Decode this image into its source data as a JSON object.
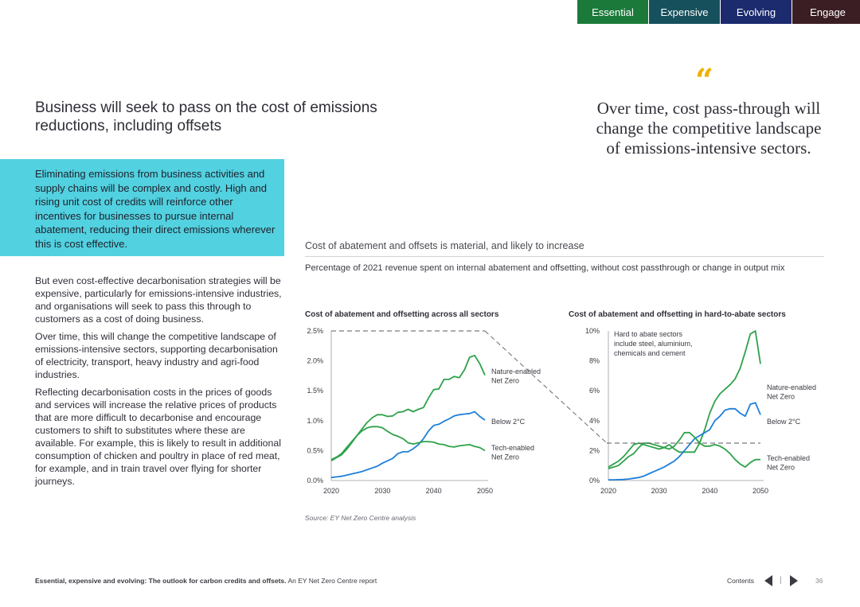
{
  "tabs": [
    {
      "label": "Essential",
      "color": "#1b7a3a"
    },
    {
      "label": "Expensive",
      "color": "#16505c"
    },
    {
      "label": "Evolving",
      "color": "#1c2a6e"
    },
    {
      "label": "Engage",
      "color": "#3b1e24"
    }
  ],
  "heading": "Business will seek to pass on the cost of emissions reductions, including offsets",
  "quote": {
    "mark": "“",
    "text": "Over time, cost pass-through will change the competitive landscape of emissions-intensive sectors."
  },
  "callout": "Eliminating emissions from business activities and supply chains will be complex and costly. High and rising unit cost of credits will reinforce other incentives for businesses to pursue internal abatement, reducing their direct emissions wherever this is cost effective.",
  "body": [
    "But even cost-effective decarbonisation strategies will be expensive, particularly for emissions-intensive industries, and organisations will seek to pass this through to customers as a cost of doing business.",
    "Over time, this will change the competitive landscape of emissions-intensive sectors, supporting decarbonisation of electricity, transport, heavy industry and agri-food industries.",
    "Reflecting decarbonisation costs in the prices of goods and services will increase the relative prices of products that are more difficult to decarbonise and encourage customers to shift to substitutes where these are available. For example, this is likely to result in additional consumption of chicken and poultry in place of red meat, for example, and in train travel over flying for shorter journeys."
  ],
  "chart_section": {
    "title": "Cost of abatement and offsets is material, and likely to increase",
    "subtitle": "Percentage of 2021 revenue spent on internal abatement and offsetting, without cost passthrough or change in output mix",
    "source": "Source: EY Net Zero Centre analysis"
  },
  "chart_data": [
    {
      "type": "line",
      "title": "Cost of abatement and offsetting across all sectors",
      "xlabel": "",
      "ylabel": "",
      "xlim": [
        2020,
        2050
      ],
      "ylim": [
        0,
        2.5
      ],
      "xticks": [
        "2020",
        "2030",
        "2040",
        "2050"
      ],
      "yticks": [
        "0.0%",
        "0.5%",
        "1.0%",
        "1.5%",
        "2.0%",
        "2.5%"
      ],
      "grid": false,
      "x": [
        2020,
        2021,
        2022,
        2023,
        2024,
        2025,
        2026,
        2027,
        2028,
        2029,
        2030,
        2031,
        2032,
        2033,
        2034,
        2035,
        2036,
        2037,
        2038,
        2039,
        2040,
        2041,
        2042,
        2043,
        2044,
        2045,
        2046,
        2047,
        2048,
        2049,
        2050
      ],
      "series": [
        {
          "name": "Nature-enabled Net Zero",
          "color": "#2ea24a",
          "values": [
            0.33,
            0.38,
            0.43,
            0.52,
            0.63,
            0.75,
            0.86,
            0.97,
            1.05,
            1.1,
            1.1,
            1.07,
            1.08,
            1.14,
            1.15,
            1.19,
            1.15,
            1.19,
            1.22,
            1.38,
            1.52,
            1.53,
            1.69,
            1.69,
            1.74,
            1.72,
            1.85,
            2.06,
            2.09,
            1.95,
            1.76
          ]
        },
        {
          "name": "Below 2°C",
          "color": "#1e7fd8",
          "values": [
            0.05,
            0.06,
            0.07,
            0.09,
            0.11,
            0.13,
            0.15,
            0.18,
            0.21,
            0.24,
            0.29,
            0.33,
            0.37,
            0.45,
            0.48,
            0.48,
            0.53,
            0.6,
            0.7,
            0.83,
            0.92,
            0.94,
            0.99,
            1.03,
            1.08,
            1.1,
            1.11,
            1.12,
            1.15,
            1.07,
            1.01
          ]
        },
        {
          "name": "Tech-enabled Net Zero",
          "color": "#2ea24a",
          "values": [
            0.35,
            0.39,
            0.45,
            0.55,
            0.65,
            0.75,
            0.83,
            0.88,
            0.9,
            0.9,
            0.88,
            0.82,
            0.77,
            0.74,
            0.7,
            0.63,
            0.61,
            0.63,
            0.65,
            0.65,
            0.64,
            0.61,
            0.6,
            0.57,
            0.56,
            0.58,
            0.59,
            0.6,
            0.57,
            0.55,
            0.5
          ]
        }
      ]
    },
    {
      "type": "line",
      "title": "Cost of abatement and offsetting in hard-to-abate sectors",
      "annotation": "Hard to abate sectors include steel, aluminium, chemicals and cement",
      "xlabel": "",
      "ylabel": "",
      "xlim": [
        2020,
        2050
      ],
      "ylim": [
        0,
        10
      ],
      "xticks": [
        "2020",
        "2030",
        "2040",
        "2050"
      ],
      "yticks": [
        "0%",
        "2%",
        "4%",
        "6%",
        "8%",
        "10%"
      ],
      "grid": false,
      "x": [
        2020,
        2021,
        2022,
        2023,
        2024,
        2025,
        2026,
        2027,
        2028,
        2029,
        2030,
        2031,
        2032,
        2033,
        2034,
        2035,
        2036,
        2037,
        2038,
        2039,
        2040,
        2041,
        2042,
        2043,
        2044,
        2045,
        2046,
        2047,
        2048,
        2049,
        2050
      ],
      "series": [
        {
          "name": "Nature-enabled Net Zero",
          "color": "#2ea24a",
          "values": [
            0.9,
            1.1,
            1.3,
            1.6,
            2.0,
            2.4,
            2.5,
            2.4,
            2.3,
            2.2,
            2.1,
            2.2,
            2.4,
            2.1,
            1.9,
            1.9,
            1.9,
            1.9,
            2.5,
            3.4,
            4.5,
            5.3,
            5.8,
            6.1,
            6.4,
            6.8,
            7.5,
            8.6,
            9.8,
            10.0,
            7.8
          ]
        },
        {
          "name": "Below 2°C",
          "color": "#1e7fd8",
          "values": [
            0.05,
            0.05,
            0.06,
            0.07,
            0.1,
            0.15,
            0.2,
            0.3,
            0.45,
            0.6,
            0.75,
            0.9,
            1.1,
            1.3,
            1.6,
            2.0,
            2.4,
            2.8,
            3.0,
            3.2,
            3.4,
            4.0,
            4.3,
            4.7,
            4.8,
            4.8,
            4.5,
            4.3,
            5.1,
            5.2,
            4.4
          ]
        },
        {
          "name": "Tech-enabled Net Zero",
          "color": "#2ea24a",
          "values": [
            0.8,
            0.9,
            1.0,
            1.3,
            1.6,
            1.8,
            2.2,
            2.5,
            2.5,
            2.4,
            2.3,
            2.2,
            2.1,
            2.3,
            2.7,
            3.2,
            3.2,
            2.9,
            2.5,
            2.3,
            2.3,
            2.4,
            2.3,
            2.1,
            1.8,
            1.4,
            1.1,
            0.9,
            1.2,
            1.4,
            1.4
          ]
        }
      ]
    }
  ],
  "footer": {
    "title": "Essential, expensive and evolving: The outlook for carbon credits and offsets.",
    "suffix": "An EY Net Zero Centre report",
    "contents": "Contents",
    "separator": "|",
    "page": "36"
  }
}
